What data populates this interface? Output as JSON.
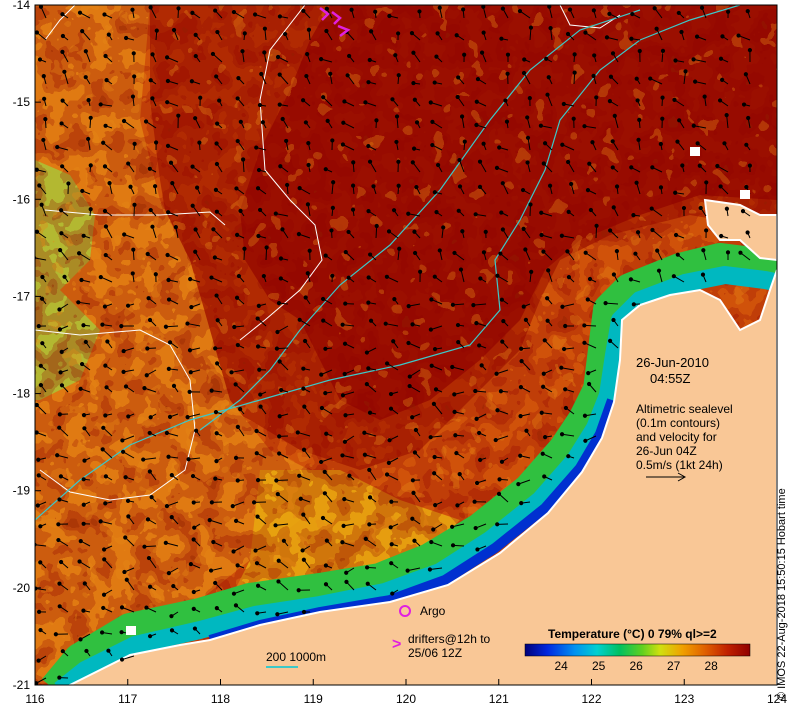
{
  "map": {
    "lon_range": [
      116,
      124
    ],
    "lat_range": [
      -21,
      -14
    ],
    "x_ticks": [
      "116",
      "117",
      "118",
      "119",
      "120",
      "121",
      "122",
      "123",
      "124"
    ],
    "y_ticks": [
      "-14",
      "-15",
      "-16",
      "-17",
      "-18",
      "-19",
      "-20",
      "-21"
    ],
    "land_color": "#f9c796",
    "contour_color": "#ffffff",
    "isobath_color": "#3cc8c8",
    "arrow_color": "#000000"
  },
  "stamp": {
    "date": "26-Jun-2010",
    "time": "04:55Z"
  },
  "description": {
    "line1": "Altimetric sealevel",
    "line2": "(0.1m contours)",
    "line3": "and velocity for",
    "line4": "26-Jun 04Z",
    "line5": "0.5m/s (1kt 24h)"
  },
  "legend": {
    "argo": "Argo",
    "argo_color": "#e020e0",
    "drifters_symbol": ">",
    "drifters_line1": "drifters@12h to",
    "drifters_line2": "25/06 12Z",
    "drifter_color": "#e020e0",
    "depth_label": "200  1000m",
    "colorbar_title": "Temperature (°C) 0 79% ql>=2",
    "colorbar_ticks": [
      "24",
      "25",
      "26",
      "27",
      "28"
    ],
    "colorbar_range": [
      23,
      29
    ]
  },
  "credit": "© IMOS 22-Aug-2018 15:50:15 Hobart time"
}
